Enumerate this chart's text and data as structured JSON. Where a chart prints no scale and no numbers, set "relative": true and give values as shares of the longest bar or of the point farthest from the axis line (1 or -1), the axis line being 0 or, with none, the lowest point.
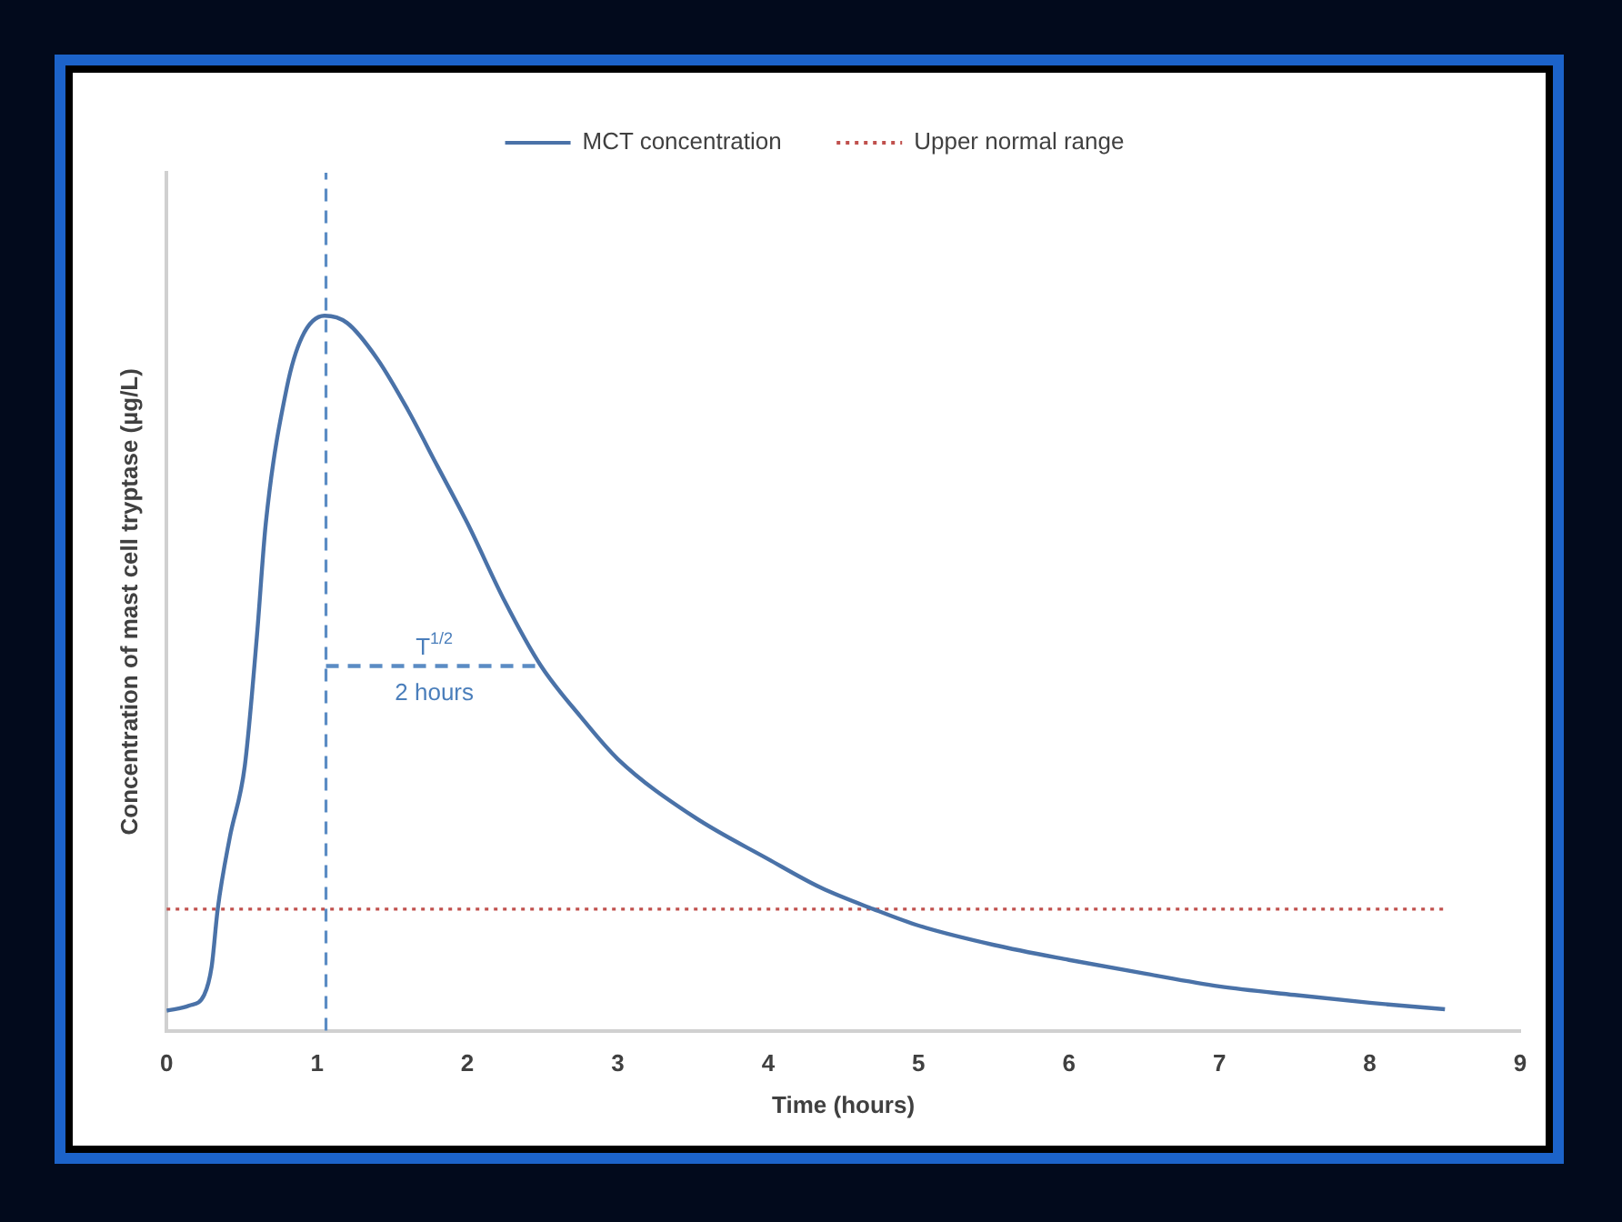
{
  "chart_data": {
    "type": "line",
    "relative": true,
    "xlabel": "Time (hours)",
    "ylabel": "Concentration of mast cell tryptase (µg/L)",
    "xlim": [
      0,
      9
    ],
    "xticks": [
      0,
      1,
      2,
      3,
      4,
      5,
      6,
      7,
      8,
      9
    ],
    "grid": false,
    "legend": "top",
    "marker": "none",
    "series": [
      {
        "name": "MCT concentration",
        "color": "#4a72a8",
        "line_style": "solid",
        "x": [
          0,
          0.15,
          0.25,
          0.3,
          0.34,
          0.42,
          0.52,
          0.6,
          0.66,
          0.8,
          0.9,
          1.05,
          1.2,
          1.4,
          1.6,
          1.8,
          2.0,
          2.25,
          2.49,
          2.75,
          3,
          3.5,
          4,
          4.35,
          4.7,
          5,
          5.5,
          6,
          6.5,
          7,
          7.5,
          8,
          8.5
        ],
        "values": [
          0.028,
          0.035,
          0.05,
          0.09,
          0.17,
          0.27,
          0.37,
          0.55,
          0.71,
          0.9,
          0.97,
          1.0,
          0.99,
          0.94,
          0.87,
          0.79,
          0.71,
          0.6,
          0.51,
          0.44,
          0.38,
          0.3,
          0.24,
          0.2,
          0.17,
          0.147,
          0.12,
          0.099,
          0.08,
          0.062,
          0.05,
          0.039,
          0.03
        ]
      },
      {
        "color": "#5b8cc4",
        "line_style": "dashed",
        "x": [
          1.06,
          2.49
        ],
        "values": [
          0.51,
          0.51
        ]
      }
    ],
    "ref_lines": [
      {
        "axis": "y",
        "value": 0.17,
        "label": "Upper normal range",
        "color": "#c0504d",
        "line_style": "dotted"
      },
      {
        "axis": "x",
        "value": 1.06,
        "color": "#5b8cc4",
        "line_style": "dashed"
      }
    ],
    "annotations": [
      {
        "text": "T$^{1/2}$",
        "x": 1.78,
        "y": 0.51
      },
      {
        "text": "2 hours",
        "x": 1.78,
        "y": 0.51
      }
    ]
  }
}
